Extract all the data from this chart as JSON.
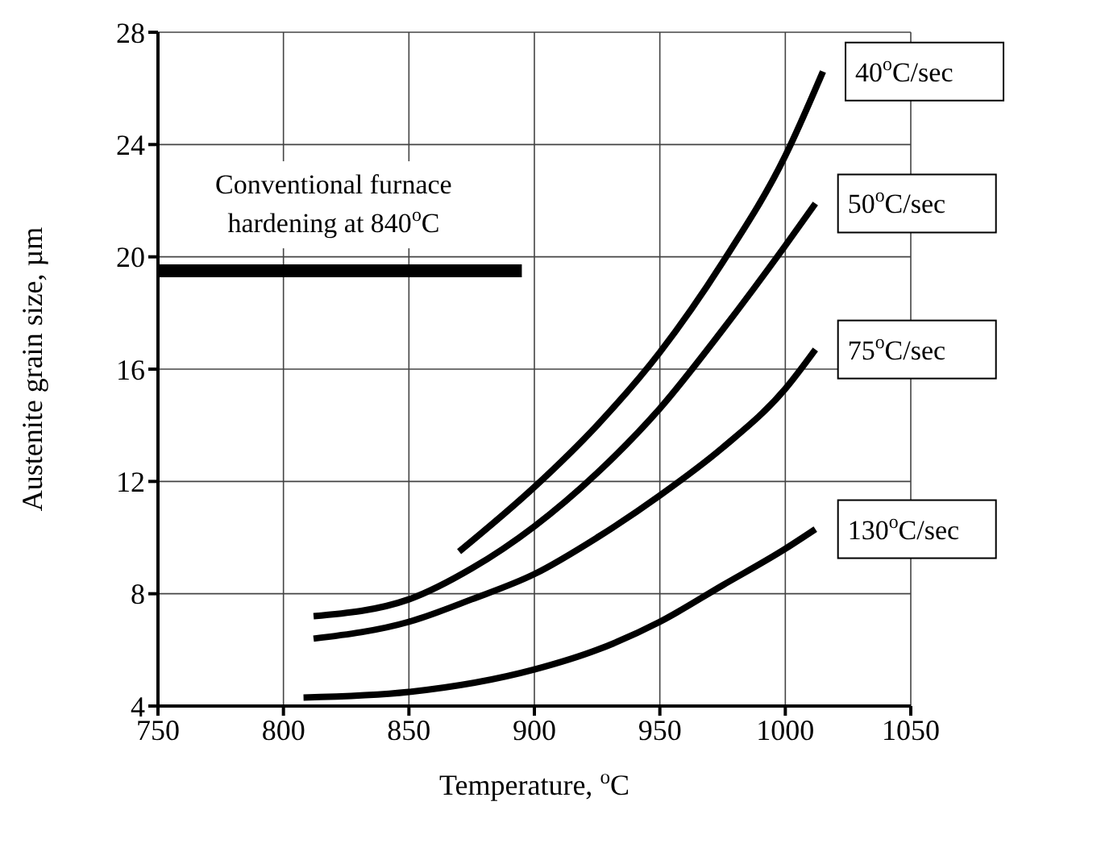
{
  "chart_data": {
    "type": "line",
    "xlabel": "Temperature, $^{o}$C",
    "ylabel": "Austenite grain size, µm",
    "xlim": [
      750,
      1050
    ],
    "xticks": [
      750,
      800,
      850,
      900,
      950,
      1000,
      1050
    ],
    "ylim": [
      4,
      28
    ],
    "yticks": [
      4,
      8,
      12,
      16,
      20,
      24,
      28
    ],
    "grid": true,
    "marker": "none",
    "line_style": "solid",
    "annotations": [
      {
        "text": "Conventional furnace hardening at 840$^{o}$C",
        "x": 820,
        "y": 19.5
      }
    ],
    "series": [
      {
        "name": "40$^{o}$C/sec",
        "color": "#000000",
        "x": [
          870,
          900,
          925,
          950,
          975,
          1000,
          1015
        ],
        "values": [
          9.5,
          11.8,
          14,
          16.6,
          19.8,
          23.6,
          26.6
        ]
      },
      {
        "name": "50$^{o}$C/sec",
        "color": "#000000",
        "x": [
          812,
          850,
          875,
          900,
          925,
          950,
          975,
          1000,
          1012
        ],
        "values": [
          7.2,
          7.8,
          8.9,
          10.4,
          12.3,
          14.6,
          17.4,
          20.4,
          21.9
        ]
      },
      {
        "name": "75$^{o}$C/sec",
        "color": "#000000",
        "x": [
          812,
          850,
          875,
          900,
          925,
          950,
          975,
          1000,
          1012
        ],
        "values": [
          6.4,
          7.0,
          7.8,
          8.7,
          10,
          11.5,
          13.2,
          15.3,
          16.7
        ]
      },
      {
        "name": "130$^{o}$C/sec",
        "color": "#000000",
        "x": [
          808,
          850,
          900,
          925,
          950,
          975,
          1000,
          1012
        ],
        "values": [
          4.3,
          4.5,
          5.3,
          6.0,
          7.0,
          8.3,
          9.6,
          10.3
        ]
      },
      {
        "color": "#000000",
        "x": [
          750,
          895
        ],
        "values": [
          19.5,
          19.5
        ]
      }
    ]
  }
}
